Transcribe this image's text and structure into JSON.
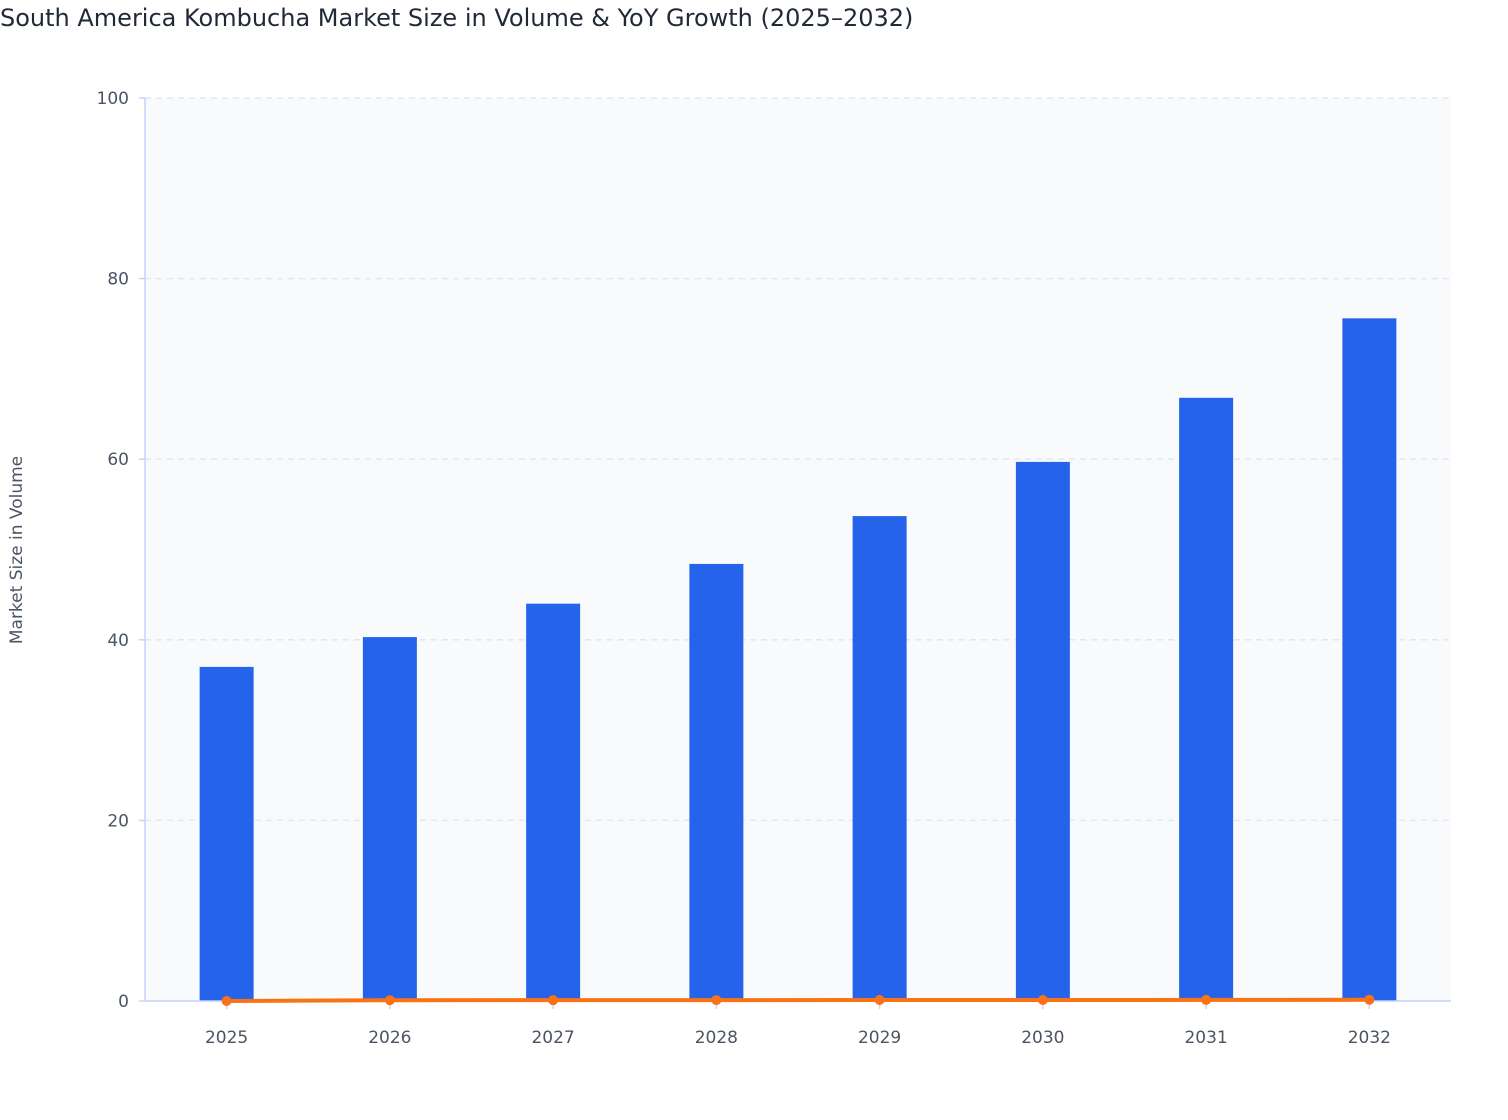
{
  "chart_data": {
    "type": "bar",
    "title": "South America Kombucha Market Size in Volume & YoY Growth (2025–2032)",
    "xlabel": "",
    "ylabel": "Market Size in Volume",
    "ylim": [
      0,
      100
    ],
    "yticks": [
      0,
      20,
      40,
      60,
      80,
      100
    ],
    "grid": true,
    "categories": [
      "2025",
      "2026",
      "2027",
      "2028",
      "2029",
      "2030",
      "2031",
      "2032"
    ],
    "series": [
      {
        "type": "bar",
        "values": [
          37.0,
          40.3,
          44.0,
          48.4,
          53.7,
          59.7,
          66.8,
          75.6
        ],
        "color": "#2563eb"
      },
      {
        "type": "line",
        "values": [
          0,
          0.089,
          0.092,
          0.1,
          0.109,
          0.112,
          0.119,
          0.132
        ],
        "color": "#f97316"
      }
    ]
  }
}
